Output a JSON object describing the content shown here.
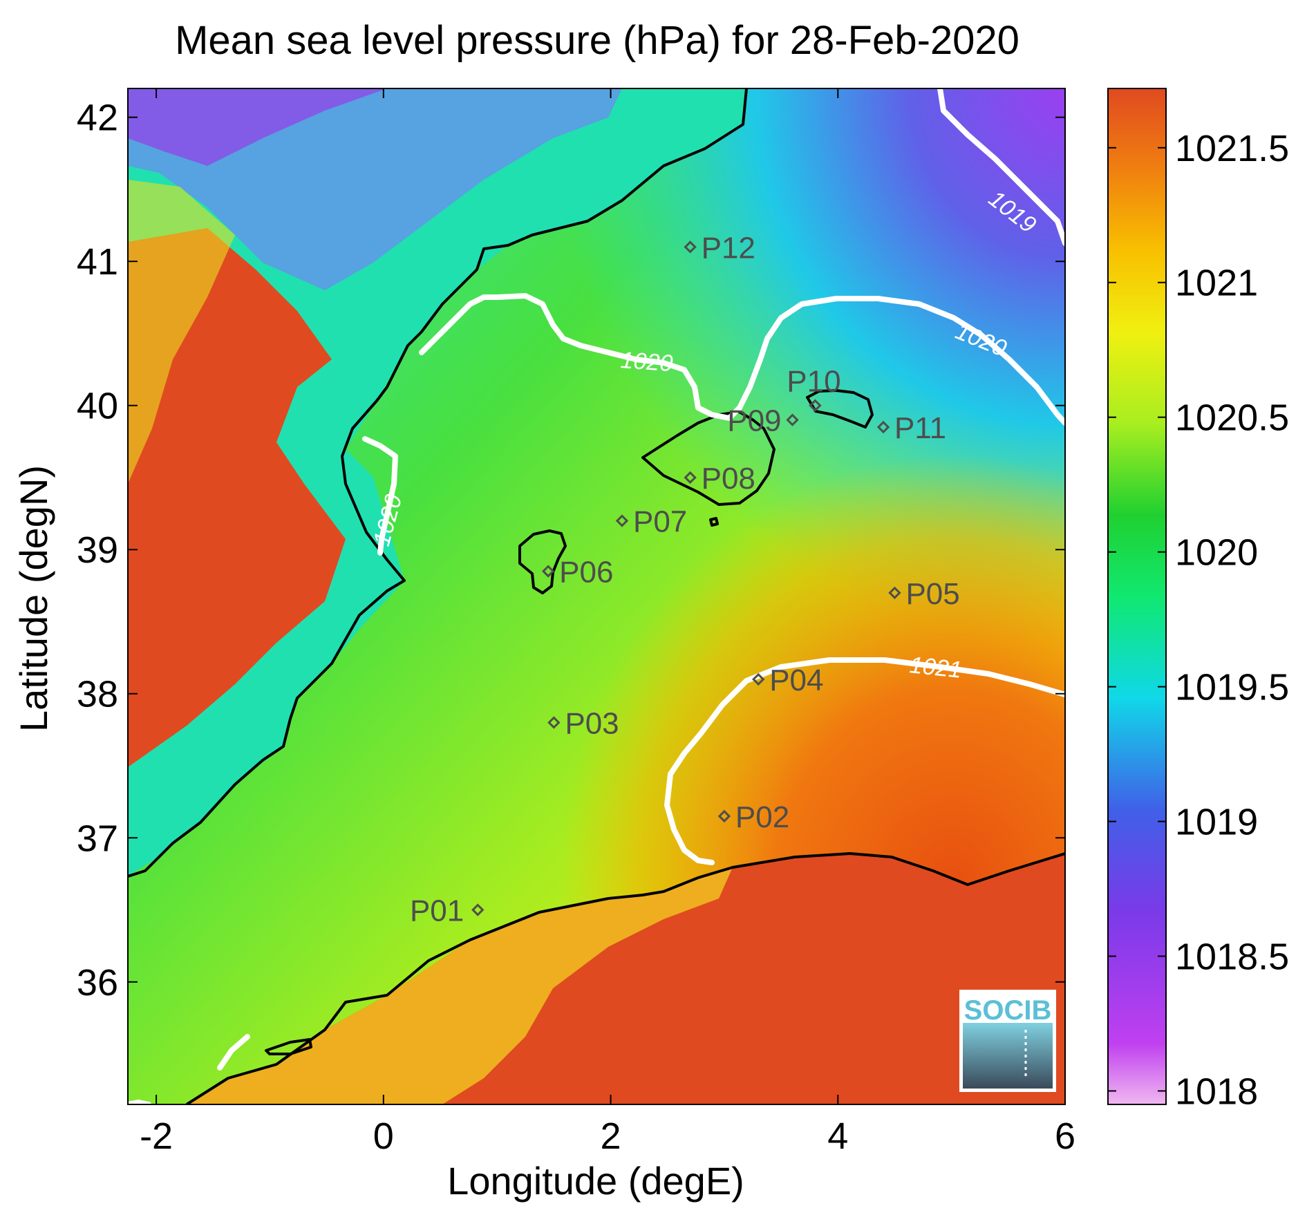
{
  "title": "Mean sea level pressure (hPa) for 28-Feb-2020",
  "chart_data": {
    "type": "heatmap",
    "title": "Mean sea level pressure (hPa) for 28-Feb-2020",
    "xlabel": "Longitude (degE)",
    "ylabel": "Latitude (degN)",
    "xlim": [
      -2.25,
      6
    ],
    "ylim": [
      35.15,
      42.2
    ],
    "xticks": [
      -2,
      0,
      2,
      4,
      6
    ],
    "xtick_labels": [
      "-2",
      "0",
      "2",
      "4",
      "6"
    ],
    "yticks": [
      36,
      37,
      38,
      39,
      40,
      41,
      42
    ],
    "ytick_labels": [
      "36",
      "37",
      "38",
      "39",
      "40",
      "41",
      "42"
    ],
    "colorbar": {
      "min": 1017.95,
      "max": 1021.72,
      "ticks": [
        1018,
        1018.5,
        1019,
        1019.5,
        1020,
        1020.5,
        1021,
        1021.5
      ],
      "tick_labels": [
        "1018",
        "1018.5",
        "1019",
        "1019.5",
        "1020",
        "1020.5",
        "1021",
        "1021.5"
      ],
      "colors": [
        "#f0b8f0",
        "#c040f0",
        "#7a3ae8",
        "#4060e8",
        "#10d8e8",
        "#10e870",
        "#20d030",
        "#a8ee20",
        "#f0f010",
        "#f8c000",
        "#f08010",
        "#e04a20"
      ]
    },
    "contours": [
      {
        "label": "1019",
        "level": 1019
      },
      {
        "label": "1020",
        "level": 1020
      },
      {
        "label": "1020",
        "level": 1020
      },
      {
        "label": "1020",
        "level": 1020
      },
      {
        "label": "1021",
        "level": 1021
      }
    ],
    "stations": [
      {
        "name": "P01",
        "lon": 0.83,
        "lat": 36.5
      },
      {
        "name": "P02",
        "lon": 3.0,
        "lat": 37.15
      },
      {
        "name": "P03",
        "lon": 1.5,
        "lat": 37.8
      },
      {
        "name": "P04",
        "lon": 3.3,
        "lat": 38.1
      },
      {
        "name": "P05",
        "lon": 4.5,
        "lat": 38.7
      },
      {
        "name": "P06",
        "lon": 1.45,
        "lat": 38.85
      },
      {
        "name": "P07",
        "lon": 2.1,
        "lat": 39.2
      },
      {
        "name": "P08",
        "lon": 2.7,
        "lat": 39.5
      },
      {
        "name": "P09",
        "lon": 3.6,
        "lat": 39.9
      },
      {
        "name": "P10",
        "lon": 3.8,
        "lat": 40.0
      },
      {
        "name": "P11",
        "lon": 4.4,
        "lat": 39.85
      },
      {
        "name": "P12",
        "lon": 2.7,
        "lat": 41.1
      }
    ]
  },
  "logo": {
    "text": "SOCIB",
    "text_color": "#5bbfd6"
  }
}
